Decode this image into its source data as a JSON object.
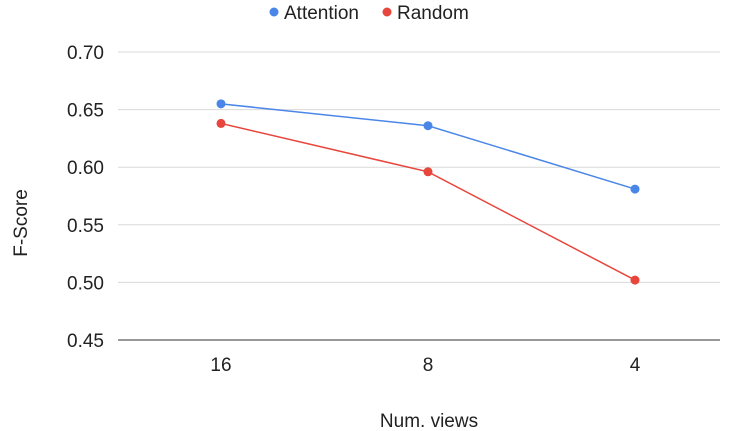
{
  "chart_data": {
    "type": "line",
    "categories": [
      "16",
      "8",
      "4"
    ],
    "series": [
      {
        "name": "Attention",
        "color": "#4a86e8",
        "values": [
          0.655,
          0.636,
          0.581
        ]
      },
      {
        "name": "Random",
        "color": "#e8453c",
        "values": [
          0.638,
          0.596,
          0.502
        ]
      }
    ],
    "xlabel": "Num. views",
    "ylabel": "F-Score",
    "ylim": [
      0.45,
      0.7
    ],
    "yticks": [
      "0.70",
      "0.65",
      "0.60",
      "0.55",
      "0.50",
      "0.45"
    ],
    "grid": true,
    "legend_position": "top-center"
  }
}
